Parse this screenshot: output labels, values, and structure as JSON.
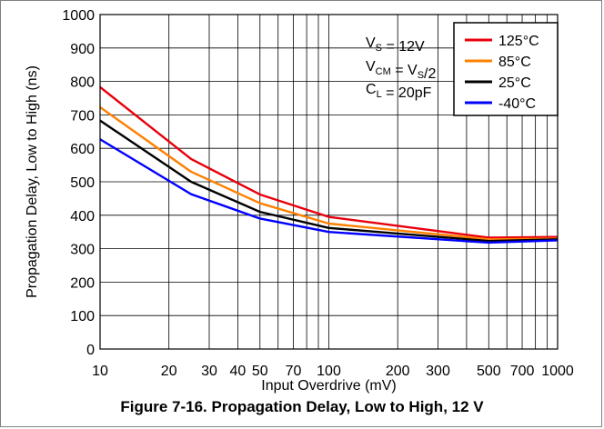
{
  "figure_caption": "Figure 7-16. Propagation Delay, Low to High, 12 V",
  "chart_data": {
    "type": "line",
    "title": "",
    "xlabel": "Input Overdrive (mV)",
    "ylabel": "Propagation Delay, Low to High (ns)",
    "xscale": "log",
    "xlim": [
      10,
      1000
    ],
    "ylim": [
      0,
      1000
    ],
    "grid": true,
    "legend_position": "top-right",
    "x_tick_labels": [
      "10",
      "20",
      "30",
      "40",
      "50",
      "70",
      "100",
      "200",
      "300",
      "500",
      "700",
      "1000"
    ],
    "x_tick_values": [
      10,
      20,
      30,
      40,
      50,
      70,
      100,
      200,
      300,
      500,
      700,
      1000
    ],
    "y_tick_labels": [
      "0",
      "100",
      "200",
      "300",
      "400",
      "500",
      "600",
      "700",
      "800",
      "900",
      "1000"
    ],
    "y_tick_values": [
      0,
      100,
      200,
      300,
      400,
      500,
      600,
      700,
      800,
      900,
      1000
    ],
    "annotations": [
      {
        "main": "V",
        "sub": "S",
        "rest": " = 12V"
      },
      {
        "main": "V",
        "sub": "CM",
        "rest": " = V",
        "sub2": "S",
        "rest2": "/2"
      },
      {
        "main": "C",
        "sub": "L",
        "rest": " = 20pF"
      }
    ],
    "x": [
      10,
      25,
      50,
      100,
      500,
      1000
    ],
    "series": [
      {
        "name": "125°C",
        "color": "#e8000b",
        "values": [
          783,
          568,
          462,
          395,
          333,
          335
        ]
      },
      {
        "name": "85°C",
        "color": "#ff8000",
        "values": [
          723,
          530,
          436,
          375,
          328,
          330
        ]
      },
      {
        "name": "25°C",
        "color": "#000000",
        "values": [
          683,
          500,
          410,
          362,
          323,
          328
        ]
      },
      {
        "name": "-40°C",
        "color": "#0000ff",
        "values": [
          627,
          463,
          390,
          350,
          318,
          325
        ]
      }
    ]
  }
}
